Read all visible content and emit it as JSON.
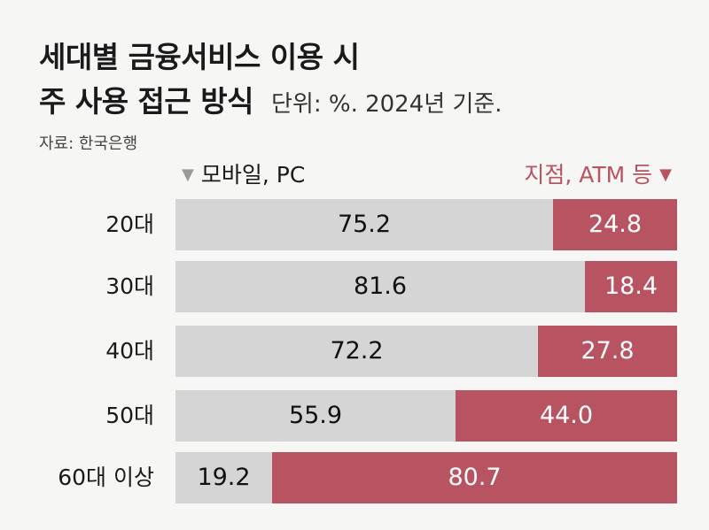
{
  "title": {
    "line1": "세대별 금융서비스 이용 시",
    "line2": "주 사용 접근 방식",
    "unit": "단위: %. 2024년 기준."
  },
  "source": "자료: 한국은행",
  "legend": {
    "left": "모바일, PC",
    "right": "지점, ATM 등"
  },
  "colors": {
    "series_a": "#d5d5d5",
    "series_b": "#b85362"
  },
  "chart_data": {
    "type": "bar",
    "orientation": "horizontal",
    "stacked": true,
    "categories": [
      "20대",
      "30대",
      "40대",
      "50대",
      "60대 이상"
    ],
    "series": [
      {
        "name": "모바일, PC",
        "values": [
          75.2,
          81.6,
          72.2,
          55.9,
          19.2
        ]
      },
      {
        "name": "지점, ATM 등",
        "values": [
          24.8,
          18.4,
          27.8,
          44.0,
          80.7
        ]
      }
    ],
    "value_labels": [
      [
        "75.2",
        "81.6",
        "72.2",
        "55.9",
        "19.2"
      ],
      [
        "24.8",
        "18.4",
        "27.8",
        "44.0",
        "80.7"
      ]
    ],
    "xlim": [
      0,
      100
    ],
    "title": "세대별 금융서비스 이용 시 주 사용 접근 방식",
    "legend_position": "top",
    "grid": false
  }
}
